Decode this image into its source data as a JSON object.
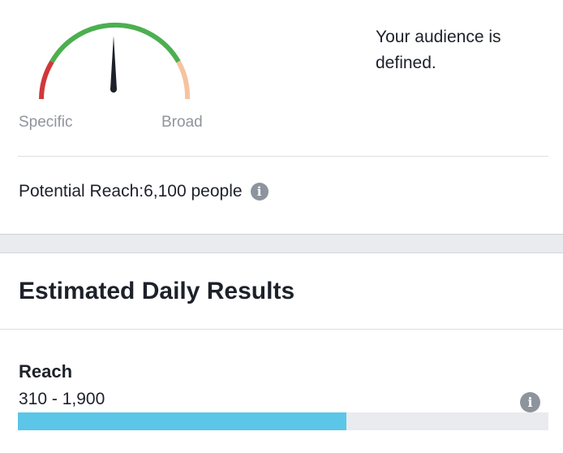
{
  "audience": {
    "gauge": {
      "left_label": "Specific",
      "right_label": "Broad",
      "needle_level": 0.5,
      "colors": {
        "red": "#d0383a",
        "green": "#4caf50",
        "peach": "#f6c3a0",
        "needle": "#1d2129"
      }
    },
    "status_text": "Your audience is defined.",
    "potential_reach": {
      "label": "Potential Reach:",
      "value": "6,100 people",
      "info_icon": "info-icon"
    }
  },
  "estimated": {
    "title": "Estimated Daily Results",
    "metric": {
      "label": "Reach",
      "range": "310 - 1,900",
      "info_icon": "info-icon",
      "progress_fraction": 0.62,
      "bar_color": "#5bc6e8",
      "track_color": "#e9ebee"
    }
  }
}
